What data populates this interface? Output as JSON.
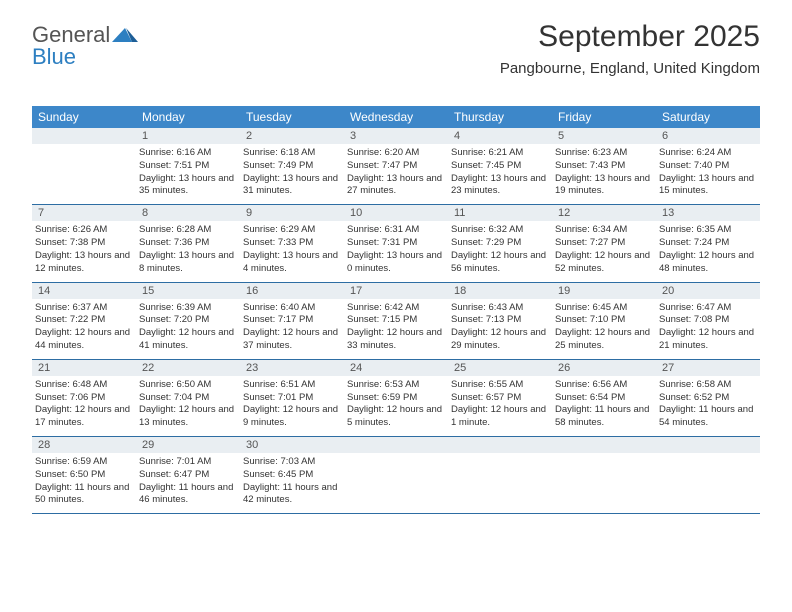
{
  "logo": {
    "part1": "General",
    "part2": "Blue"
  },
  "header": {
    "title": "September 2025",
    "location": "Pangbourne, England, United Kingdom"
  },
  "colors": {
    "header_bar": "#3d87c9",
    "header_text": "#ffffff",
    "numrow_bg": "#e9eef2",
    "week_border": "#2d6da3",
    "body_text": "#333333",
    "logo_blue": "#2d7fc1",
    "title_fontsize": 30,
    "location_fontsize": 15,
    "dayhead_fontsize": 12,
    "cell_fontsize": 9.5
  },
  "dayNames": [
    "Sunday",
    "Monday",
    "Tuesday",
    "Wednesday",
    "Thursday",
    "Friday",
    "Saturday"
  ],
  "weeks": [
    [
      null,
      {
        "n": "1",
        "sr": "6:16 AM",
        "ss": "7:51 PM",
        "dl": "13 hours and 35 minutes."
      },
      {
        "n": "2",
        "sr": "6:18 AM",
        "ss": "7:49 PM",
        "dl": "13 hours and 31 minutes."
      },
      {
        "n": "3",
        "sr": "6:20 AM",
        "ss": "7:47 PM",
        "dl": "13 hours and 27 minutes."
      },
      {
        "n": "4",
        "sr": "6:21 AM",
        "ss": "7:45 PM",
        "dl": "13 hours and 23 minutes."
      },
      {
        "n": "5",
        "sr": "6:23 AM",
        "ss": "7:43 PM",
        "dl": "13 hours and 19 minutes."
      },
      {
        "n": "6",
        "sr": "6:24 AM",
        "ss": "7:40 PM",
        "dl": "13 hours and 15 minutes."
      }
    ],
    [
      {
        "n": "7",
        "sr": "6:26 AM",
        "ss": "7:38 PM",
        "dl": "13 hours and 12 minutes."
      },
      {
        "n": "8",
        "sr": "6:28 AM",
        "ss": "7:36 PM",
        "dl": "13 hours and 8 minutes."
      },
      {
        "n": "9",
        "sr": "6:29 AM",
        "ss": "7:33 PM",
        "dl": "13 hours and 4 minutes."
      },
      {
        "n": "10",
        "sr": "6:31 AM",
        "ss": "7:31 PM",
        "dl": "13 hours and 0 minutes."
      },
      {
        "n": "11",
        "sr": "6:32 AM",
        "ss": "7:29 PM",
        "dl": "12 hours and 56 minutes."
      },
      {
        "n": "12",
        "sr": "6:34 AM",
        "ss": "7:27 PM",
        "dl": "12 hours and 52 minutes."
      },
      {
        "n": "13",
        "sr": "6:35 AM",
        "ss": "7:24 PM",
        "dl": "12 hours and 48 minutes."
      }
    ],
    [
      {
        "n": "14",
        "sr": "6:37 AM",
        "ss": "7:22 PM",
        "dl": "12 hours and 44 minutes."
      },
      {
        "n": "15",
        "sr": "6:39 AM",
        "ss": "7:20 PM",
        "dl": "12 hours and 41 minutes."
      },
      {
        "n": "16",
        "sr": "6:40 AM",
        "ss": "7:17 PM",
        "dl": "12 hours and 37 minutes."
      },
      {
        "n": "17",
        "sr": "6:42 AM",
        "ss": "7:15 PM",
        "dl": "12 hours and 33 minutes."
      },
      {
        "n": "18",
        "sr": "6:43 AM",
        "ss": "7:13 PM",
        "dl": "12 hours and 29 minutes."
      },
      {
        "n": "19",
        "sr": "6:45 AM",
        "ss": "7:10 PM",
        "dl": "12 hours and 25 minutes."
      },
      {
        "n": "20",
        "sr": "6:47 AM",
        "ss": "7:08 PM",
        "dl": "12 hours and 21 minutes."
      }
    ],
    [
      {
        "n": "21",
        "sr": "6:48 AM",
        "ss": "7:06 PM",
        "dl": "12 hours and 17 minutes."
      },
      {
        "n": "22",
        "sr": "6:50 AM",
        "ss": "7:04 PM",
        "dl": "12 hours and 13 minutes."
      },
      {
        "n": "23",
        "sr": "6:51 AM",
        "ss": "7:01 PM",
        "dl": "12 hours and 9 minutes."
      },
      {
        "n": "24",
        "sr": "6:53 AM",
        "ss": "6:59 PM",
        "dl": "12 hours and 5 minutes."
      },
      {
        "n": "25",
        "sr": "6:55 AM",
        "ss": "6:57 PM",
        "dl": "12 hours and 1 minute."
      },
      {
        "n": "26",
        "sr": "6:56 AM",
        "ss": "6:54 PM",
        "dl": "11 hours and 58 minutes."
      },
      {
        "n": "27",
        "sr": "6:58 AM",
        "ss": "6:52 PM",
        "dl": "11 hours and 54 minutes."
      }
    ],
    [
      {
        "n": "28",
        "sr": "6:59 AM",
        "ss": "6:50 PM",
        "dl": "11 hours and 50 minutes."
      },
      {
        "n": "29",
        "sr": "7:01 AM",
        "ss": "6:47 PM",
        "dl": "11 hours and 46 minutes."
      },
      {
        "n": "30",
        "sr": "7:03 AM",
        "ss": "6:45 PM",
        "dl": "11 hours and 42 minutes."
      },
      null,
      null,
      null,
      null
    ]
  ],
  "labels": {
    "sunrise": "Sunrise: ",
    "sunset": "Sunset: ",
    "daylight": "Daylight: "
  }
}
